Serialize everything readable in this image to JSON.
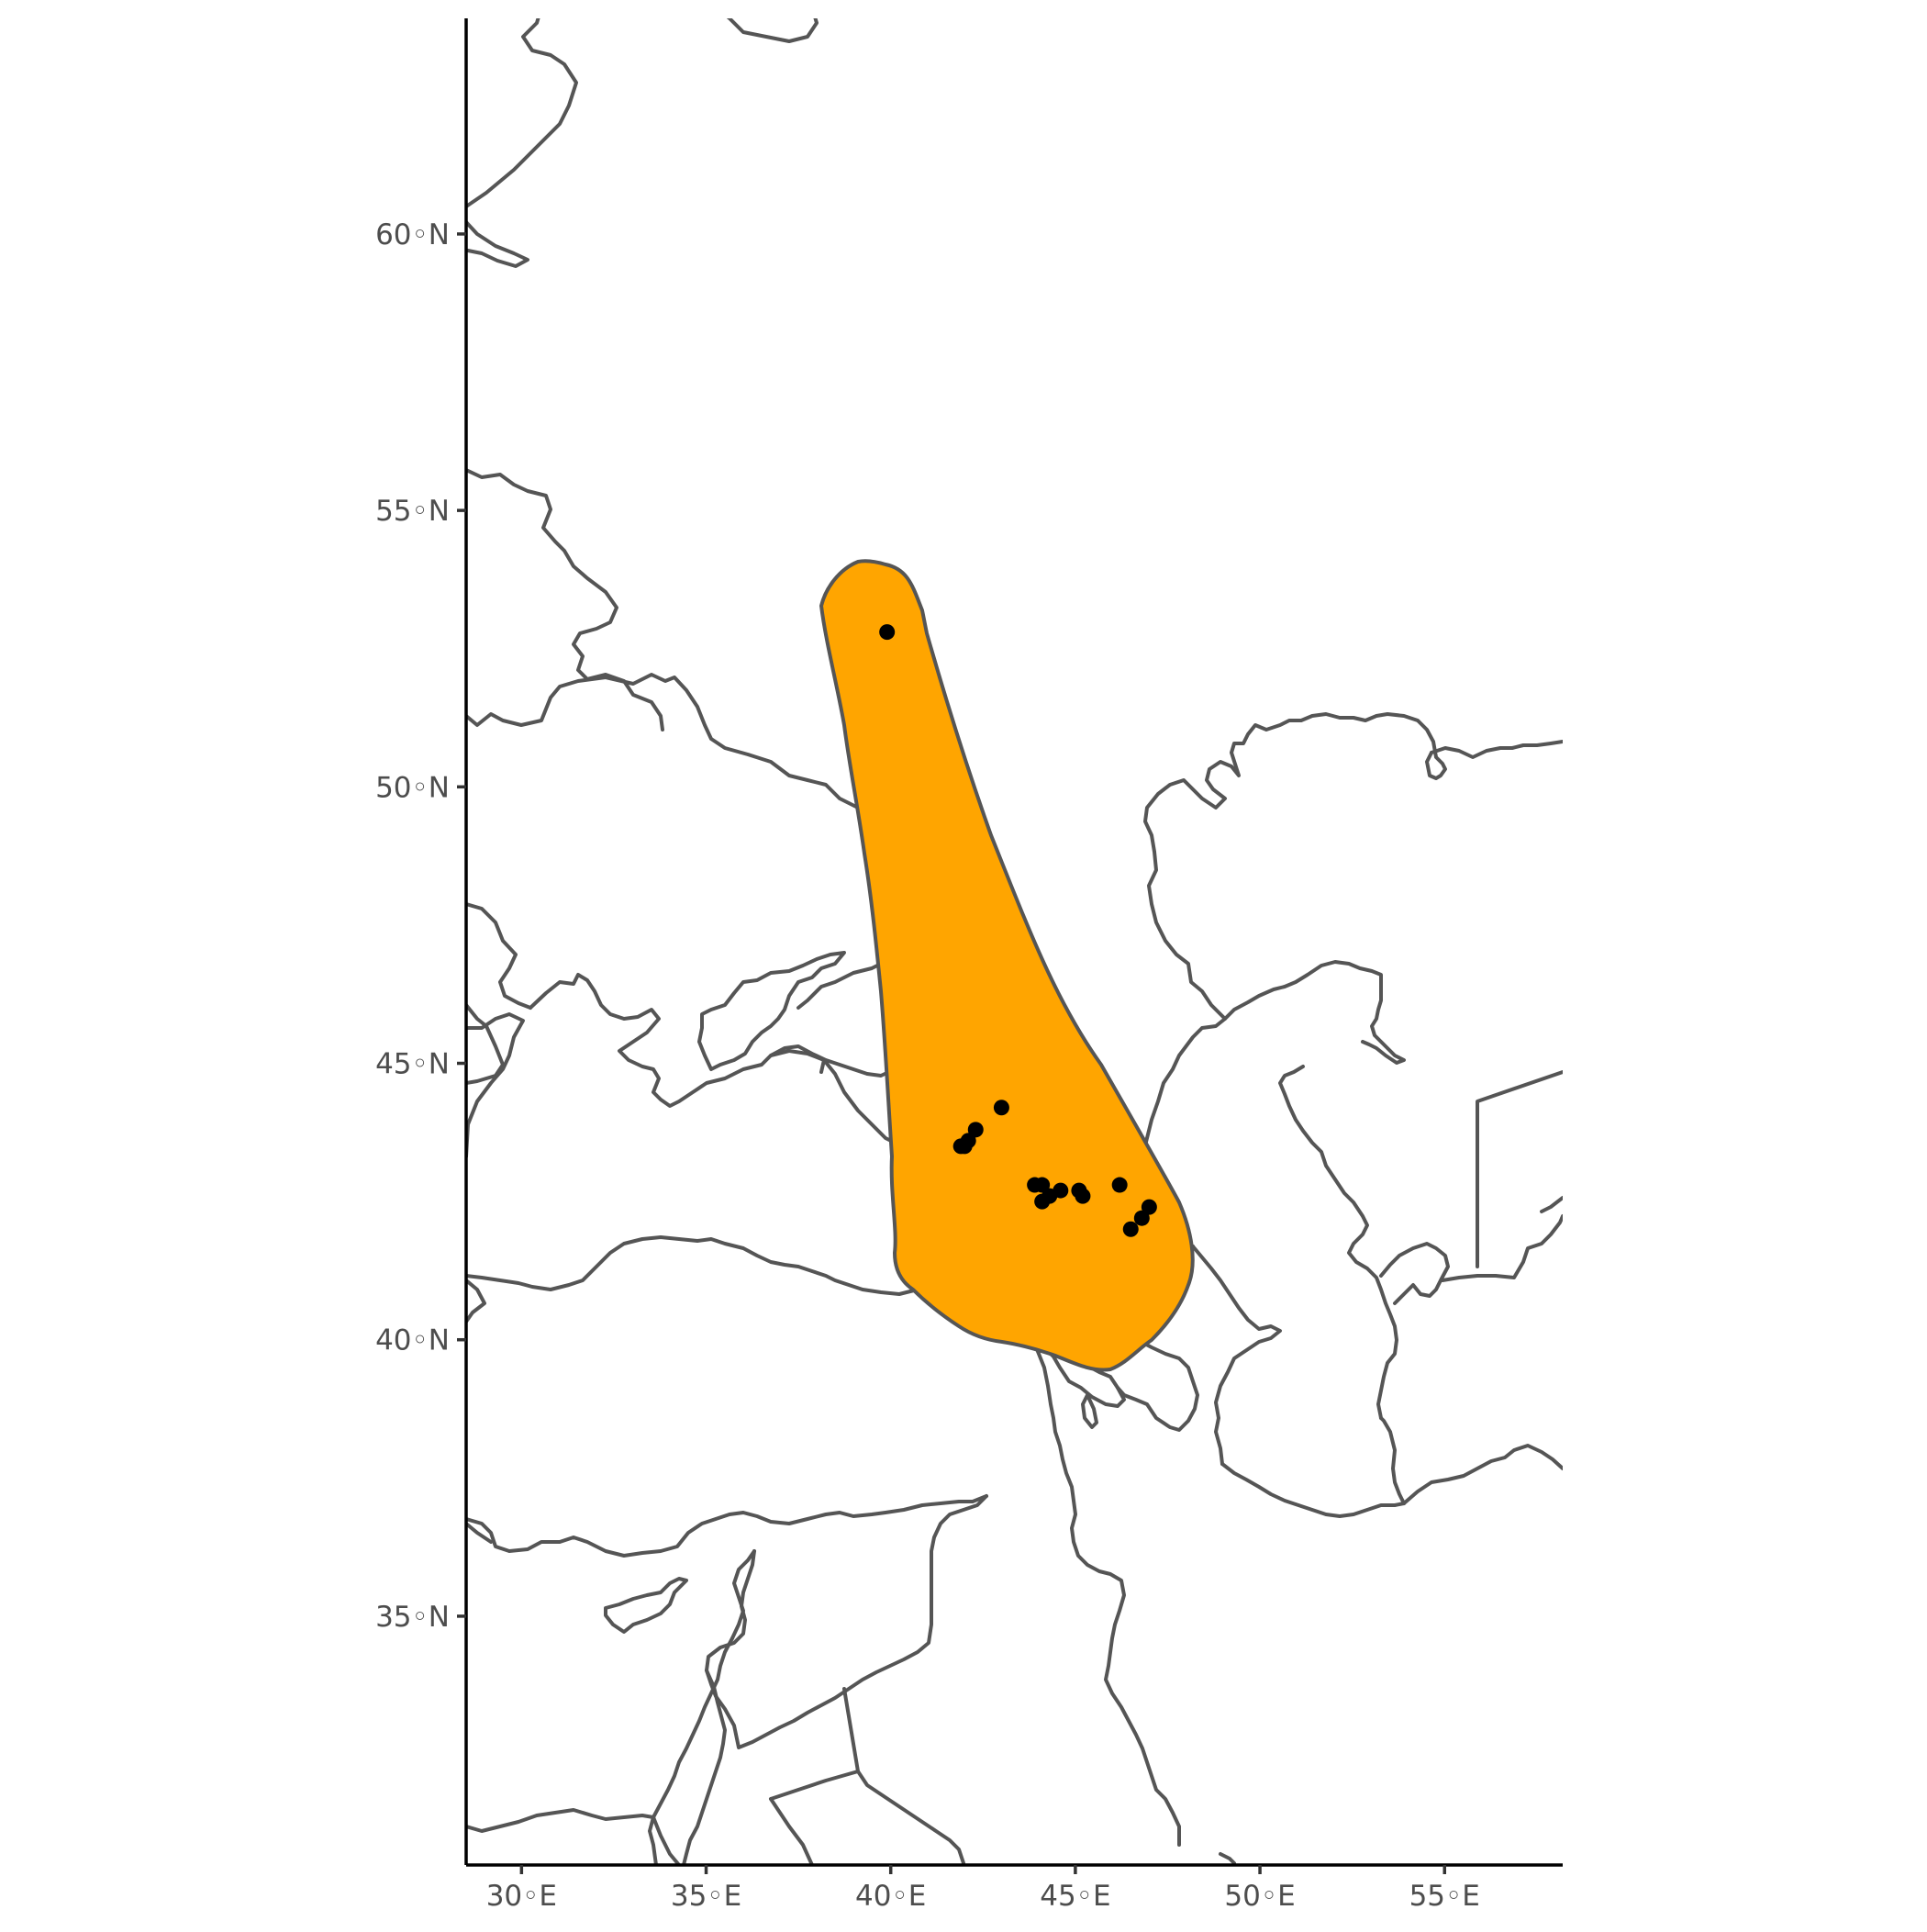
{
  "map": {
    "range_fill_color": "#FFA500",
    "range_stroke_color": "#555555",
    "point_color": "#000000",
    "border_color": "#555555",
    "x_ticks": [
      {
        "value": 30,
        "label": "30◦E"
      },
      {
        "value": 35,
        "label": "35◦E"
      },
      {
        "value": 40,
        "label": "40◦E"
      },
      {
        "value": 45,
        "label": "45◦E"
      },
      {
        "value": 50,
        "label": "50◦E"
      },
      {
        "value": 55,
        "label": "55◦E"
      }
    ],
    "y_ticks": [
      {
        "value": 35,
        "label": "35◦N"
      },
      {
        "value": 40,
        "label": "40◦N"
      },
      {
        "value": 45,
        "label": "45◦N"
      },
      {
        "value": 50,
        "label": "50◦N"
      },
      {
        "value": 55,
        "label": "55◦N"
      },
      {
        "value": 60,
        "label": "60◦N"
      }
    ],
    "lon_range": [
      28.5,
      58.2
    ],
    "lat_range": [
      30.5,
      63.9
    ],
    "occurrences": [
      {
        "lon": 39.9,
        "lat": 52.8
      },
      {
        "lon": 43.0,
        "lat": 44.2
      },
      {
        "lon": 42.3,
        "lat": 43.8
      },
      {
        "lon": 42.1,
        "lat": 43.6
      },
      {
        "lon": 41.9,
        "lat": 43.5
      },
      {
        "lon": 42.0,
        "lat": 43.5
      },
      {
        "lon": 43.9,
        "lat": 42.8
      },
      {
        "lon": 44.1,
        "lat": 42.8
      },
      {
        "lon": 44.1,
        "lat": 42.5
      },
      {
        "lon": 44.3,
        "lat": 42.6
      },
      {
        "lon": 44.6,
        "lat": 42.7
      },
      {
        "lon": 45.1,
        "lat": 42.7
      },
      {
        "lon": 45.2,
        "lat": 42.6
      },
      {
        "lon": 46.2,
        "lat": 42.8
      },
      {
        "lon": 47.0,
        "lat": 42.4
      },
      {
        "lon": 46.8,
        "lat": 42.2
      },
      {
        "lon": 46.5,
        "lat": 42.0
      }
    ]
  }
}
